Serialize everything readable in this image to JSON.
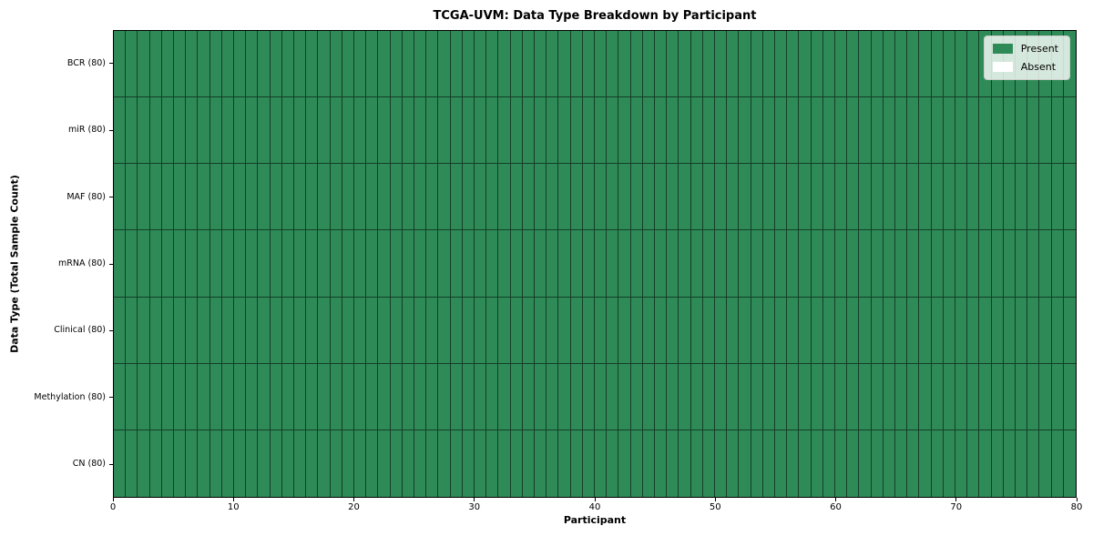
{
  "chart_data": {
    "type": "heatmap",
    "title": "TCGA-UVM: Data Type Breakdown by Participant",
    "xlabel": "Participant",
    "ylabel": "Data Type (Total Sample Count)",
    "xlim": [
      0,
      80
    ],
    "x_ticks": [
      0,
      10,
      20,
      30,
      40,
      50,
      60,
      70,
      80
    ],
    "n_participants": 80,
    "grid": true,
    "rows": [
      {
        "label": "BCR (80)",
        "data_type": "BCR",
        "total_sample_count": 80,
        "present_count": 80,
        "absent_count": 0
      },
      {
        "label": "miR (80)",
        "data_type": "miR",
        "total_sample_count": 80,
        "present_count": 80,
        "absent_count": 0
      },
      {
        "label": "MAF (80)",
        "data_type": "MAF",
        "total_sample_count": 80,
        "present_count": 80,
        "absent_count": 0
      },
      {
        "label": "mRNA (80)",
        "data_type": "mRNA",
        "total_sample_count": 80,
        "present_count": 80,
        "absent_count": 0
      },
      {
        "label": "Clinical (80)",
        "data_type": "Clinical",
        "total_sample_count": 80,
        "present_count": 80,
        "absent_count": 0
      },
      {
        "label": "Methylation (80)",
        "data_type": "Methylation",
        "total_sample_count": 80,
        "present_count": 80,
        "absent_count": 0
      },
      {
        "label": "CN (80)",
        "data_type": "CN",
        "total_sample_count": 80,
        "present_count": 80,
        "absent_count": 0
      }
    ],
    "legend": {
      "position": "upper right",
      "entries": [
        {
          "label": "Present",
          "color": "#2e8b57"
        },
        {
          "label": "Absent",
          "color": "#ffffff"
        }
      ]
    },
    "colors": {
      "present": "#2e8b57",
      "absent": "#ffffff",
      "cell_border": "rgba(0,0,0,0.55)",
      "spine": "#000000"
    }
  }
}
